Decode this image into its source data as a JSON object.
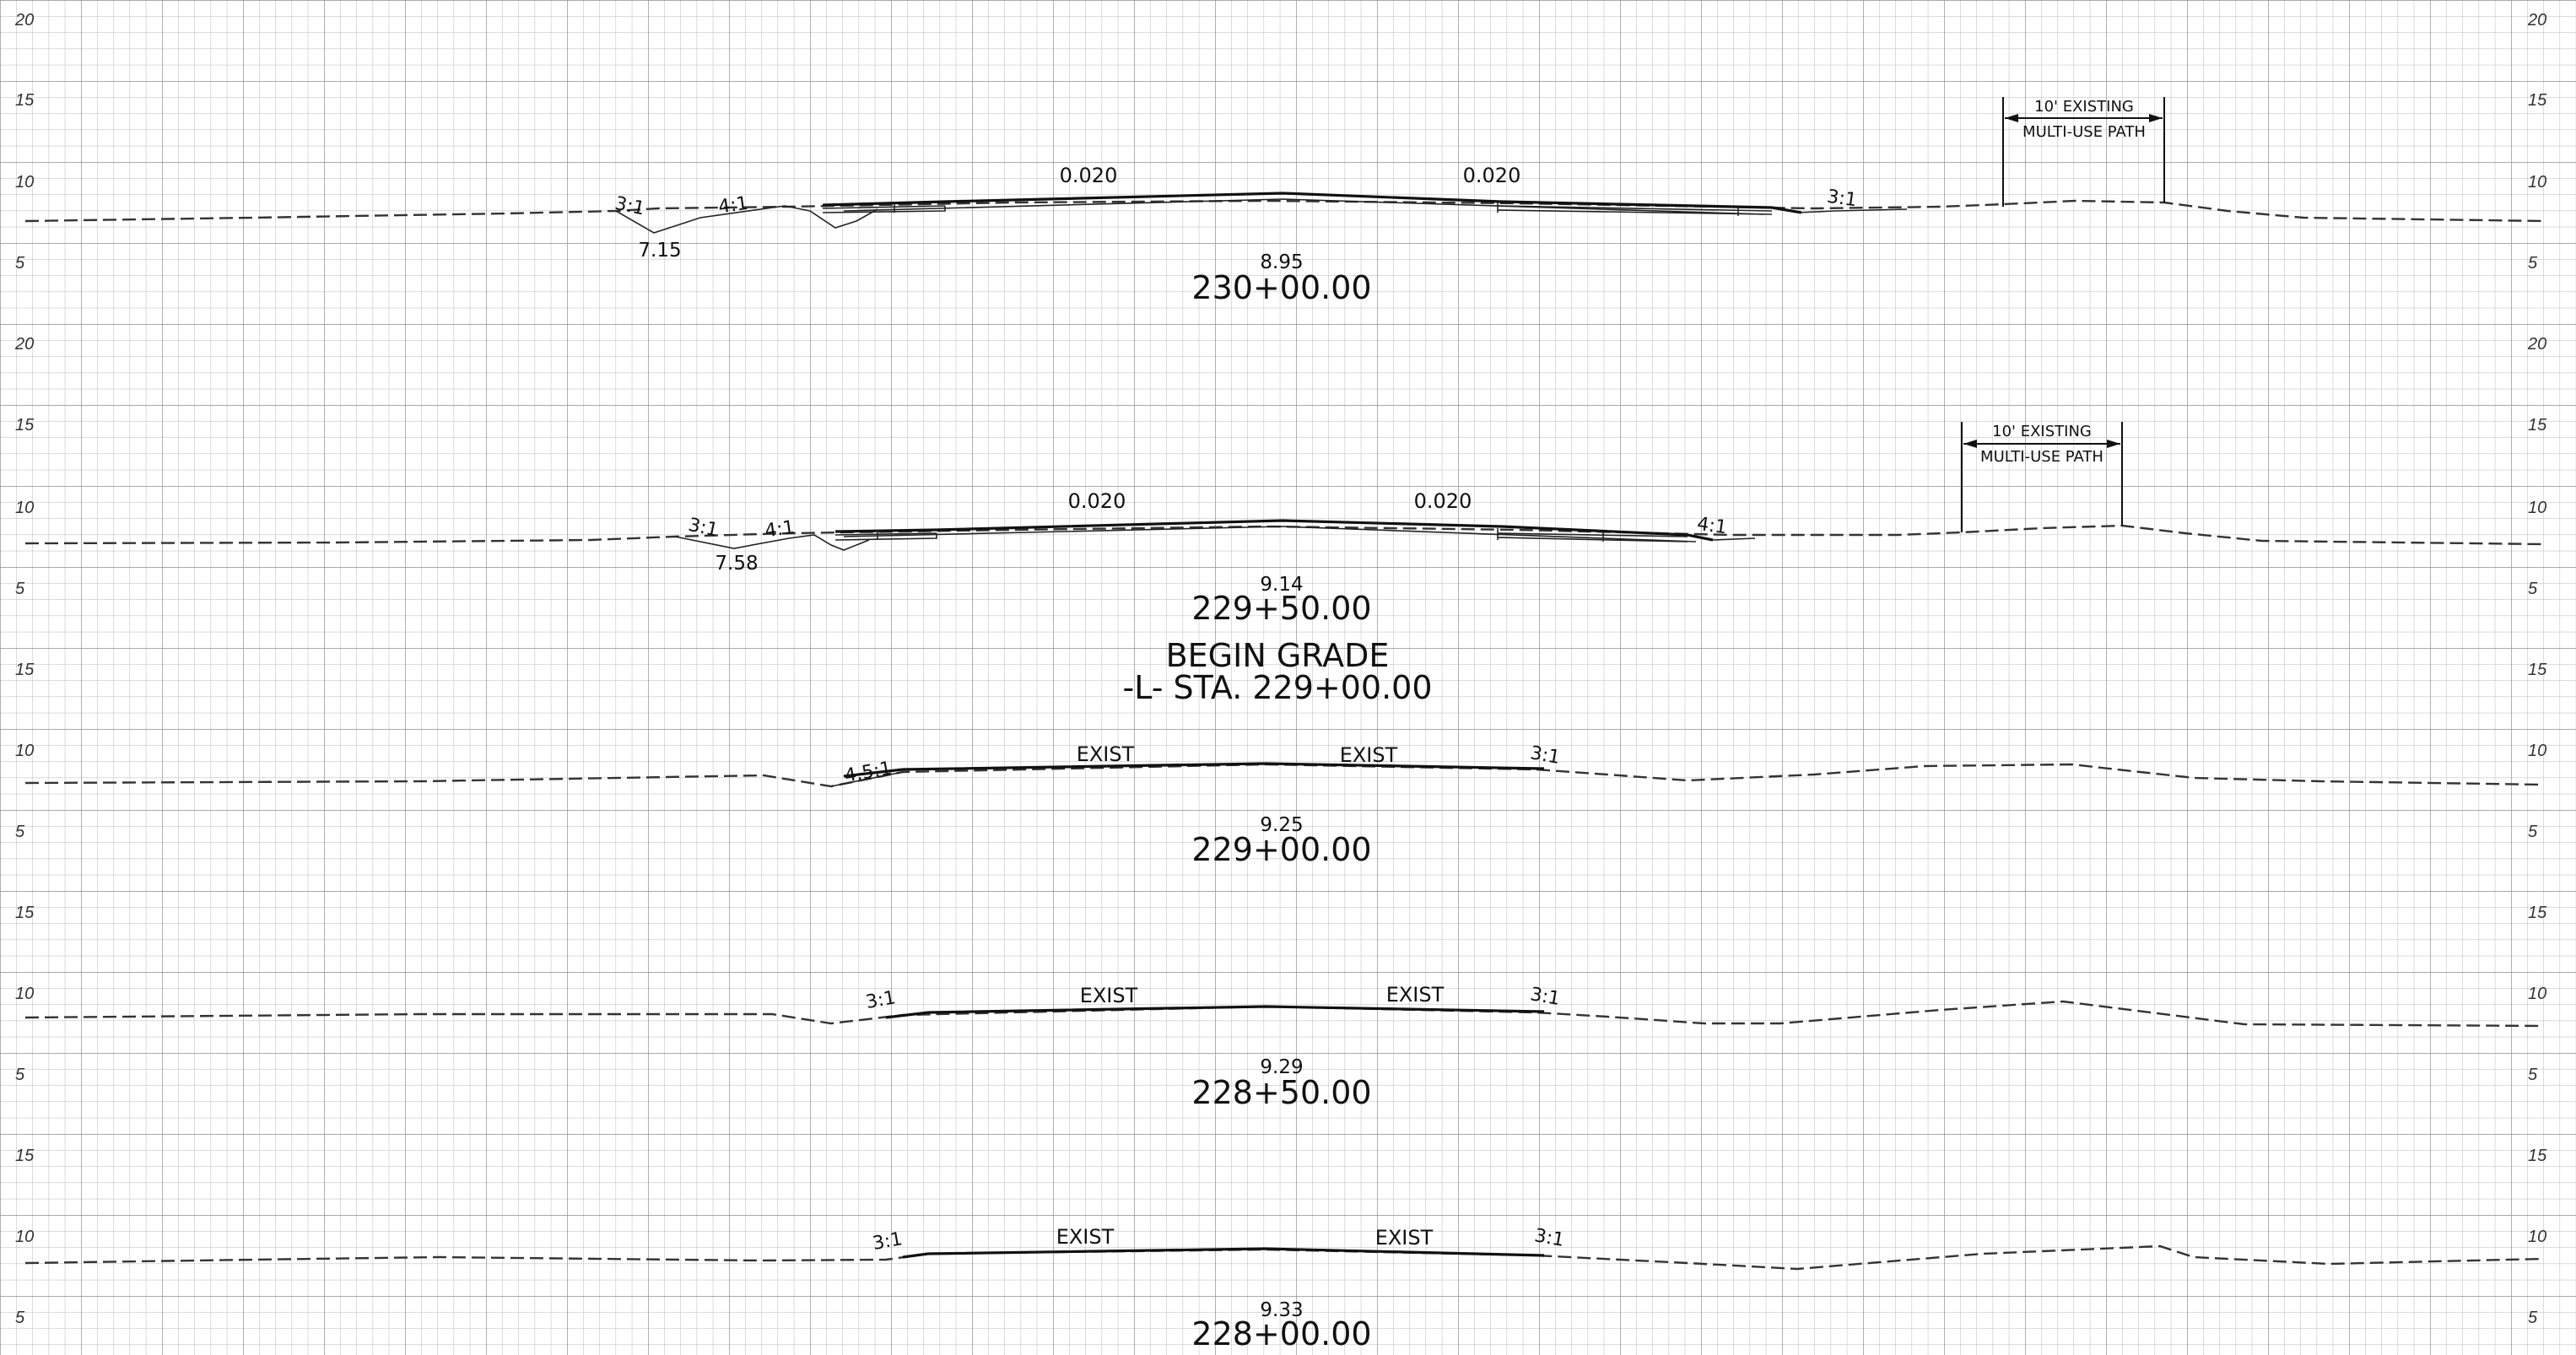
{
  "elevation_labels": {
    "twenty": "20",
    "fifteen": "15",
    "ten": "10",
    "five": "5"
  },
  "multi_use_path": {
    "line1": "10' EXISTING",
    "line2": "MULTI-USE PATH"
  },
  "begin_grade": {
    "line1": "BEGIN GRADE",
    "line2": "-L- STA. 229+00.00"
  },
  "sections": [
    {
      "station": "230+00.00",
      "grade_value": "8.95",
      "low_value": "7.15",
      "slopes": [
        "3:1",
        "4:1",
        "3:1"
      ],
      "cross_slopes": [
        "0.020",
        "0.020"
      ]
    },
    {
      "station": "229+50.00",
      "grade_value": "9.14",
      "low_value": "7.58",
      "slopes": [
        "3:1",
        "4:1",
        "4:1"
      ],
      "cross_slopes": [
        "0.020",
        "0.020"
      ]
    },
    {
      "station": "229+00.00",
      "grade_value": "9.25",
      "slopes": [
        "4.5:1",
        "3:1"
      ],
      "surface_labels": [
        "EXIST",
        "EXIST"
      ]
    },
    {
      "station": "228+50.00",
      "grade_value": "9.29",
      "slopes": [
        "3:1",
        "3:1"
      ],
      "surface_labels": [
        "EXIST",
        "EXIST"
      ]
    },
    {
      "station": "228+00.00",
      "grade_value": "9.33",
      "slopes": [
        "3:1",
        "3:1"
      ],
      "surface_labels": [
        "EXIST",
        "EXIST"
      ]
    }
  ]
}
